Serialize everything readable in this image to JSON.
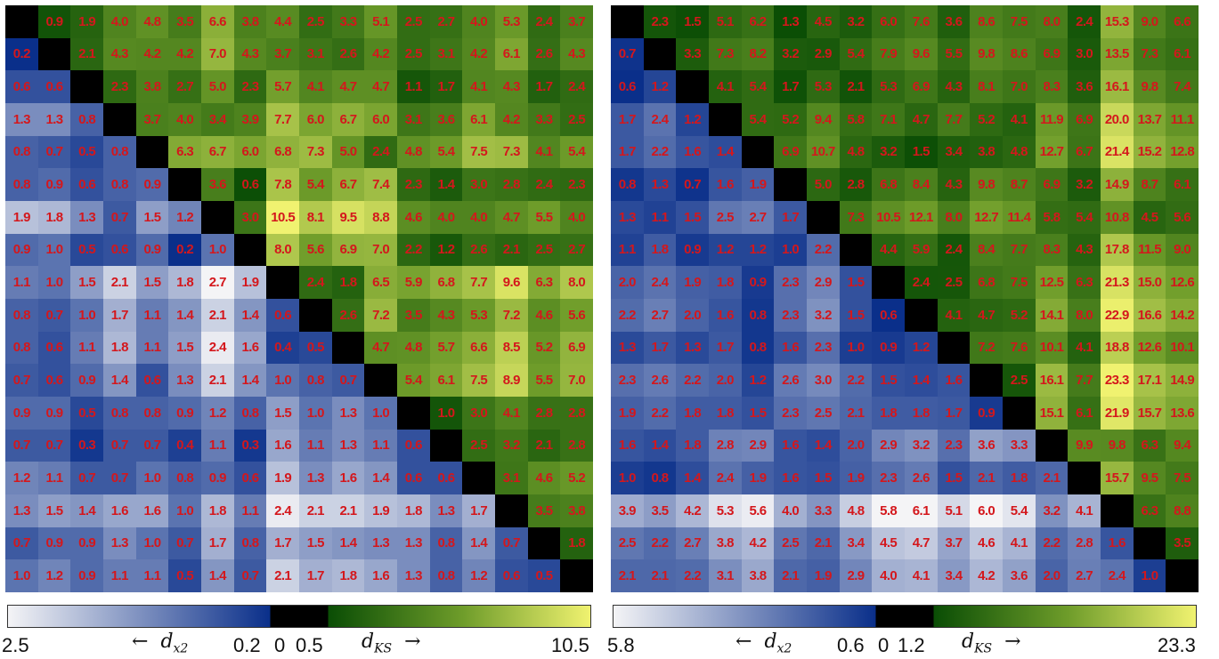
{
  "chart_data": [
    {
      "type": "heatmap",
      "upper_triangle_measure": "d_KS",
      "lower_triangle_measure": "d_x2",
      "n": 18,
      "colorbar": {
        "left_label": "2.5",
        "arrow_left_text": "←",
        "left_var": "d",
        "left_var_sub": "x2",
        "mid_labels": [
          "0.2",
          "0",
          "0.5"
        ],
        "right_var": "d",
        "right_var_sub": "KS",
        "arrow_right_text": "→",
        "right_label": "10.5",
        "x2_min": 0.2,
        "x2_max": 2.5,
        "ks_min": 0.5,
        "ks_max": 10.5
      },
      "matrix": [
        [
          "",
          "0.9",
          "1.9",
          "4.0",
          "4.8",
          "3.5",
          "6.6",
          "3.8",
          "4.4",
          "2.5",
          "3.3",
          "5.1",
          "2.5",
          "2.7",
          "4.0",
          "5.3",
          "2.4",
          "3.7"
        ],
        [
          "0.2",
          "",
          "2.1",
          "4.3",
          "4.2",
          "4.2",
          "7.0",
          "4.3",
          "3.7",
          "3.1",
          "2.6",
          "4.2",
          "2.5",
          "3.1",
          "4.2",
          "6.1",
          "2.6",
          "4.3"
        ],
        [
          "0.6",
          "0.6",
          "",
          "2.3",
          "3.8",
          "2.7",
          "5.0",
          "2.3",
          "5.7",
          "4.1",
          "4.7",
          "4.7",
          "1.1",
          "1.7",
          "4.1",
          "4.3",
          "1.7",
          "2.4"
        ],
        [
          "1.3",
          "1.3",
          "0.8",
          "",
          "3.7",
          "4.0",
          "3.4",
          "3.9",
          "7.7",
          "6.0",
          "6.7",
          "6.0",
          "3.1",
          "3.6",
          "6.1",
          "4.2",
          "3.3",
          "2.5"
        ],
        [
          "0.8",
          "0.7",
          "0.5",
          "0.8",
          "",
          "6.3",
          "6.7",
          "6.0",
          "6.8",
          "7.3",
          "5.0",
          "2.4",
          "4.8",
          "5.4",
          "7.5",
          "7.3",
          "4.1",
          "5.4"
        ],
        [
          "0.8",
          "0.9",
          "0.6",
          "0.8",
          "0.9",
          "",
          "3.6",
          "0.6",
          "7.8",
          "5.4",
          "6.7",
          "7.4",
          "2.3",
          "1.4",
          "3.0",
          "2.8",
          "2.4",
          "2.3"
        ],
        [
          "1.9",
          "1.8",
          "1.3",
          "0.7",
          "1.5",
          "1.2",
          "",
          "3.0",
          "10.5",
          "8.1",
          "9.5",
          "8.8",
          "4.6",
          "4.0",
          "4.0",
          "4.7",
          "5.5",
          "4.0"
        ],
        [
          "0.9",
          "1.0",
          "0.5",
          "0.6",
          "0.9",
          "0.2",
          "1.0",
          "",
          "8.0",
          "5.6",
          "6.9",
          "7.0",
          "2.2",
          "1.2",
          "2.6",
          "2.1",
          "2.5",
          "2.7"
        ],
        [
          "1.1",
          "1.0",
          "1.5",
          "2.1",
          "1.5",
          "1.8",
          "2.7",
          "1.9",
          "",
          "2.4",
          "1.8",
          "6.5",
          "5.9",
          "6.8",
          "7.7",
          "9.6",
          "6.3",
          "8.0"
        ],
        [
          "0.8",
          "0.7",
          "1.0",
          "1.7",
          "1.1",
          "1.4",
          "2.1",
          "1.4",
          "0.6",
          "",
          "2.6",
          "7.2",
          "3.5",
          "4.3",
          "5.3",
          "7.2",
          "4.6",
          "5.6"
        ],
        [
          "0.8",
          "0.6",
          "1.1",
          "1.8",
          "1.1",
          "1.5",
          "2.4",
          "1.6",
          "0.4",
          "0.5",
          "",
          "4.7",
          "4.8",
          "5.7",
          "6.6",
          "8.5",
          "5.2",
          "6.9"
        ],
        [
          "0.7",
          "0.6",
          "0.9",
          "1.4",
          "0.6",
          "1.3",
          "2.1",
          "1.4",
          "1.0",
          "0.8",
          "0.7",
          "",
          "5.4",
          "6.1",
          "7.5",
          "8.9",
          "5.5",
          "7.0"
        ],
        [
          "0.9",
          "0.9",
          "0.5",
          "0.8",
          "0.8",
          "0.9",
          "1.2",
          "0.8",
          "1.5",
          "1.0",
          "1.3",
          "1.0",
          "",
          "1.0",
          "3.0",
          "4.1",
          "2.8",
          "2.8"
        ],
        [
          "0.7",
          "0.7",
          "0.3",
          "0.7",
          "0.7",
          "0.4",
          "1.1",
          "0.3",
          "1.6",
          "1.1",
          "1.3",
          "1.1",
          "0.6",
          "",
          "2.5",
          "3.2",
          "2.1",
          "2.8"
        ],
        [
          "1.2",
          "1.1",
          "0.7",
          "0.7",
          "1.0",
          "0.8",
          "0.9",
          "0.6",
          "1.9",
          "1.3",
          "1.6",
          "1.4",
          "0.6",
          "0.6",
          "",
          "3.1",
          "4.6",
          "5.2"
        ],
        [
          "1.3",
          "1.5",
          "1.4",
          "1.6",
          "1.6",
          "1.0",
          "1.8",
          "1.1",
          "2.4",
          "2.1",
          "2.1",
          "1.9",
          "1.8",
          "1.3",
          "1.7",
          "",
          "3.5",
          "3.8"
        ],
        [
          "0.7",
          "0.9",
          "0.9",
          "1.3",
          "1.0",
          "0.7",
          "1.7",
          "0.8",
          "1.7",
          "1.5",
          "1.4",
          "1.3",
          "1.3",
          "0.8",
          "1.4",
          "0.7",
          "",
          "1.8"
        ],
        [
          "1.0",
          "1.2",
          "0.9",
          "1.1",
          "1.1",
          "0.5",
          "1.4",
          "0.7",
          "2.1",
          "1.7",
          "1.8",
          "1.6",
          "1.3",
          "0.8",
          "1.2",
          "0.6",
          "0.5",
          ""
        ]
      ]
    },
    {
      "type": "heatmap",
      "upper_triangle_measure": "d_KS",
      "lower_triangle_measure": "d_x2",
      "n": 18,
      "colorbar": {
        "left_label": "5.8",
        "arrow_left_text": "←",
        "left_var": "d",
        "left_var_sub": "x2",
        "mid_labels": [
          "0.6",
          "0",
          "1.2"
        ],
        "right_var": "d",
        "right_var_sub": "KS",
        "arrow_right_text": "→",
        "right_label": "23.3",
        "x2_min": 0.6,
        "x2_max": 5.8,
        "ks_min": 1.2,
        "ks_max": 23.3
      },
      "matrix": [
        [
          "",
          "2.3",
          "1.5",
          "5.1",
          "6.2",
          "1.3",
          "4.5",
          "3.2",
          "6.0",
          "7.6",
          "3.6",
          "8.6",
          "7.5",
          "8.0",
          "2.4",
          "15.3",
          "9.0",
          "6.6"
        ],
        [
          "0.7",
          "",
          "3.3",
          "7.3",
          "8.2",
          "3.2",
          "2.9",
          "5.4",
          "7.9",
          "9.6",
          "5.5",
          "9.8",
          "8.6",
          "6.9",
          "3.0",
          "13.5",
          "7.3",
          "6.1"
        ],
        [
          "0.6",
          "1.2",
          "",
          "4.1",
          "5.4",
          "1.7",
          "5.3",
          "2.1",
          "5.3",
          "6.9",
          "4.3",
          "8.1",
          "7.0",
          "8.3",
          "3.6",
          "16.1",
          "9.8",
          "7.4"
        ],
        [
          "1.7",
          "2.4",
          "1.2",
          "",
          "5.4",
          "5.2",
          "9.4",
          "5.8",
          "7.1",
          "4.7",
          "7.7",
          "5.2",
          "4.1",
          "11.9",
          "6.9",
          "20.0",
          "13.7",
          "11.1"
        ],
        [
          "1.7",
          "2.2",
          "1.6",
          "1.4",
          "",
          "6.9",
          "10.7",
          "4.8",
          "3.2",
          "1.5",
          "3.4",
          "3.8",
          "4.8",
          "12.7",
          "6.7",
          "21.4",
          "15.2",
          "12.8"
        ],
        [
          "0.8",
          "1.3",
          "0.7",
          "1.6",
          "1.9",
          "",
          "5.0",
          "2.8",
          "6.8",
          "8.4",
          "4.3",
          "9.8",
          "8.7",
          "6.9",
          "3.2",
          "14.9",
          "8.7",
          "6.1"
        ],
        [
          "1.3",
          "1.1",
          "1.5",
          "2.5",
          "2.7",
          "1.7",
          "",
          "7.3",
          "10.5",
          "12.1",
          "8.0",
          "12.7",
          "11.4",
          "5.8",
          "5.4",
          "10.8",
          "4.5",
          "5.6"
        ],
        [
          "1.1",
          "1.8",
          "0.9",
          "1.2",
          "1.2",
          "1.0",
          "2.2",
          "",
          "4.4",
          "5.9",
          "2.4",
          "8.4",
          "7.7",
          "8.3",
          "4.3",
          "17.8",
          "11.5",
          "9.0"
        ],
        [
          "2.0",
          "2.4",
          "1.9",
          "1.8",
          "0.9",
          "2.3",
          "2.9",
          "1.5",
          "",
          "2.4",
          "2.5",
          "6.8",
          "7.5",
          "12.5",
          "6.3",
          "21.3",
          "15.0",
          "12.6"
        ],
        [
          "2.2",
          "2.7",
          "2.0",
          "1.6",
          "0.8",
          "2.3",
          "3.2",
          "1.5",
          "0.6",
          "",
          "4.1",
          "4.7",
          "5.2",
          "14.1",
          "8.0",
          "22.9",
          "16.6",
          "14.2"
        ],
        [
          "1.3",
          "1.7",
          "1.3",
          "1.7",
          "0.8",
          "1.6",
          "2.3",
          "1.0",
          "0.9",
          "1.2",
          "",
          "7.2",
          "7.6",
          "10.1",
          "4.1",
          "18.8",
          "12.6",
          "10.1"
        ],
        [
          "2.3",
          "2.6",
          "2.2",
          "2.0",
          "1.2",
          "2.6",
          "3.0",
          "2.2",
          "1.5",
          "1.4",
          "1.6",
          "",
          "2.5",
          "16.1",
          "7.7",
          "23.3",
          "17.1",
          "14.9"
        ],
        [
          "1.9",
          "2.2",
          "1.8",
          "1.8",
          "1.5",
          "2.3",
          "2.5",
          "2.1",
          "1.8",
          "1.8",
          "1.7",
          "0.9",
          "",
          "15.1",
          "6.1",
          "21.9",
          "15.7",
          "13.6"
        ],
        [
          "1.6",
          "1.4",
          "1.8",
          "2.8",
          "2.9",
          "1.6",
          "1.4",
          "2.0",
          "2.9",
          "3.2",
          "2.3",
          "3.6",
          "3.3",
          "",
          "9.9",
          "9.8",
          "6.3",
          "9.4"
        ],
        [
          "1.0",
          "0.8",
          "1.4",
          "2.4",
          "1.9",
          "1.6",
          "1.5",
          "1.9",
          "2.3",
          "2.6",
          "1.5",
          "2.1",
          "1.8",
          "2.1",
          "",
          "15.7",
          "9.5",
          "7.5"
        ],
        [
          "3.9",
          "3.5",
          "4.2",
          "5.3",
          "5.6",
          "4.0",
          "3.3",
          "4.8",
          "5.8",
          "6.1",
          "5.1",
          "6.0",
          "5.4",
          "3.2",
          "4.1",
          "",
          "6.3",
          "8.8"
        ],
        [
          "2.5",
          "2.2",
          "2.7",
          "3.8",
          "4.2",
          "2.5",
          "2.1",
          "3.4",
          "4.5",
          "4.7",
          "3.7",
          "4.6",
          "4.1",
          "2.2",
          "2.8",
          "1.6",
          "",
          "3.5"
        ],
        [
          "2.1",
          "2.1",
          "2.2",
          "3.1",
          "3.8",
          "2.1",
          "1.9",
          "2.9",
          "4.0",
          "4.1",
          "3.4",
          "4.2",
          "3.6",
          "2.0",
          "2.7",
          "2.4",
          "1.0",
          ""
        ]
      ]
    }
  ],
  "colors": {
    "x2_low": "#f4f4f6",
    "x2_high": "#0a2f8a",
    "ks_low": "#0a4d05",
    "ks_mid": "#6e9c2a",
    "ks_high": "#f0f270",
    "diagonal": "#000000",
    "cell_text": "#d4171c"
  }
}
